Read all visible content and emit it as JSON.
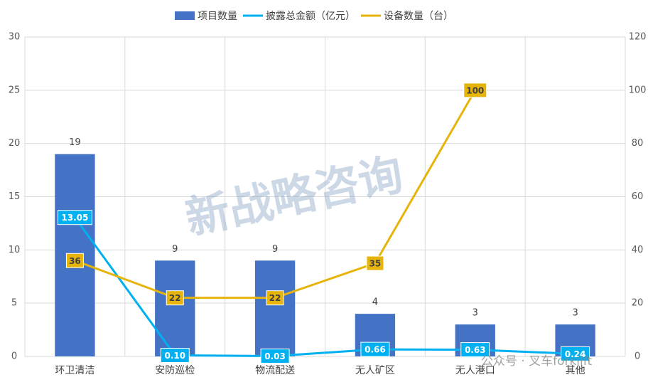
{
  "chart_data": {
    "type": "bar_line",
    "categories": [
      "环卫清洁",
      "安防巡检",
      "物流配送",
      "无人矿区",
      "无人港口",
      "其他"
    ],
    "series": [
      {
        "name": "项目数量",
        "type": "bar",
        "color": "#4472c4",
        "values": [
          19,
          9,
          9,
          4,
          3,
          3
        ]
      },
      {
        "name": "披露总金额（亿元）",
        "type": "line",
        "color": "#00b0f0",
        "values": [
          13.05,
          0.1,
          0.03,
          0.66,
          0.63,
          0.24
        ],
        "value_labels": [
          "13.05",
          "0.10",
          "0.03",
          "0.66",
          "0.63",
          "0.24"
        ]
      },
      {
        "name": "设备数量（台）",
        "type": "line",
        "axis": "y2",
        "color": "#e6b40a",
        "values": [
          36,
          22,
          22,
          35,
          100,
          null
        ]
      }
    ],
    "ylim": [
      0,
      30
    ],
    "yticks": [
      0,
      5,
      10,
      15,
      20,
      25,
      30
    ],
    "y2lim": [
      0,
      120
    ],
    "y2ticks": [
      0,
      20,
      40,
      60,
      80,
      100,
      120
    ],
    "grid": true,
    "legend": "top"
  },
  "watermarks": [
    "新战略咨询",
    "公众号 · 叉车forklift"
  ]
}
